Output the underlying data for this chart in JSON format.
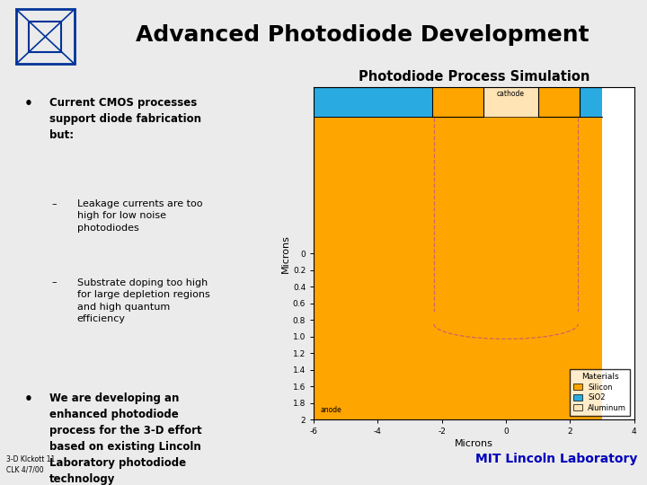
{
  "title": "Advanced Photodiode Development",
  "slide_bg": "#ebebeb",
  "header_bg": "#ffffff",
  "blue_line_color": "#0000bb",
  "title_color": "#000000",
  "title_fontsize": 18,
  "logo_color": "#003399",
  "plot_title": "Photodiode Process Simulation",
  "xlabel": "Microns",
  "ylabel": "Microns",
  "xlim": [
    -6,
    3
  ],
  "ylim_bottom": 2.0,
  "ylim_top": -2.0,
  "silicon_color": "#FFA500",
  "sio2_color": "#29ABE2",
  "aluminum_color": "#FFE4B5",
  "depletion_color": "#cc6666",
  "footer_left": "3-D Klckott 11\nCLK 4/7/00",
  "footer_right": "MIT Lincoln Laboratory",
  "bottom_bar_color": "#0000bb",
  "ytick_labels": [
    "0",
    "0.2",
    "0.4",
    "0.6",
    "0.8",
    "1.0",
    "1.2",
    "1.4",
    "1.6",
    "1.8",
    "2"
  ],
  "ytick_vals": [
    0,
    0.2,
    0.4,
    0.6,
    0.8,
    1.0,
    1.2,
    1.4,
    1.6,
    1.8,
    2.0
  ],
  "xtick_vals": [
    -6,
    -4,
    -2,
    0,
    2,
    4
  ],
  "xtick_labels": [
    "-6",
    "-4",
    "-2",
    "0",
    "2",
    "4"
  ]
}
